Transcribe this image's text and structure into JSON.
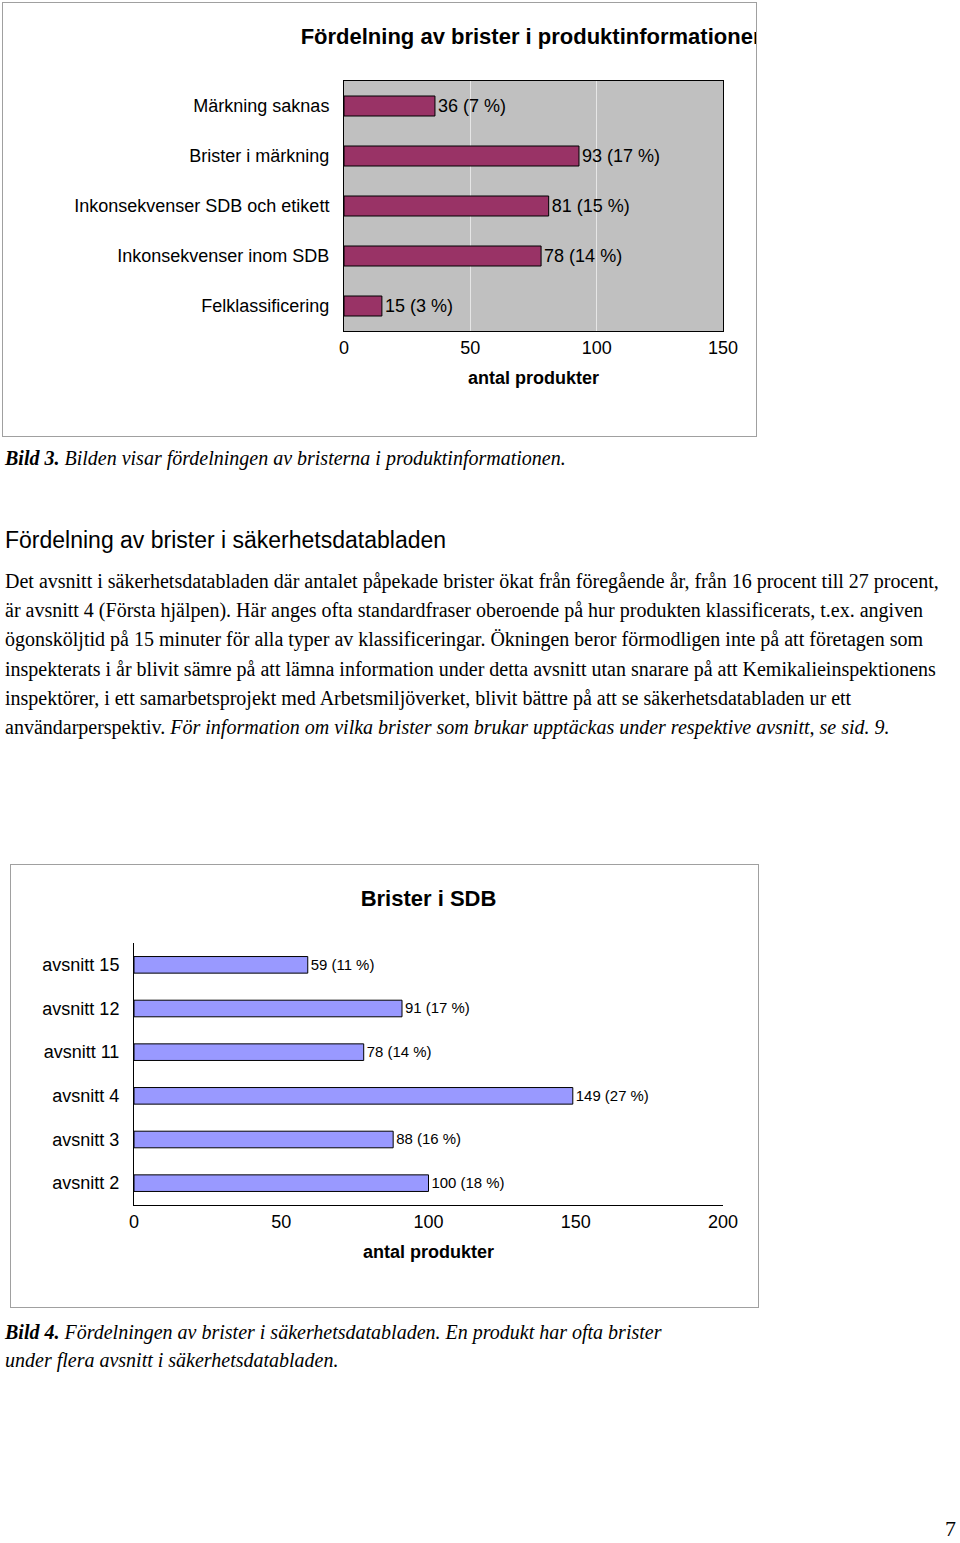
{
  "chart_data": [
    {
      "type": "bar",
      "orientation": "horizontal",
      "title": "Fördelning av brister i produktinformationen",
      "categories": [
        "Märkning saknas",
        "Brister i märkning",
        "Inkonsekvenser SDB och etikett",
        "Inkonsekvenser inom SDB",
        "Felklassificering"
      ],
      "values": [
        36,
        93,
        81,
        78,
        15
      ],
      "value_labels": [
        "36 (7 %)",
        "93 (17 %)",
        "81 (15 %)",
        "78 (14 %)",
        "15 (3 %)"
      ],
      "data_labels": true,
      "color": "#993366",
      "xlabel": "antal produkter",
      "xlim": [
        0,
        150
      ],
      "xticks": [
        0,
        50,
        100,
        150
      ],
      "grid": true
    },
    {
      "type": "bar",
      "orientation": "horizontal",
      "title": "Brister i SDB",
      "categories": [
        "avsnitt 15",
        "avsnitt 12",
        "avsnitt 11",
        "avsnitt 4",
        "avsnitt 3",
        "avsnitt 2"
      ],
      "values": [
        59,
        91,
        78,
        149,
        88,
        100
      ],
      "value_labels": [
        "59 (11 %)",
        "91 (17 %)",
        "78 (14 %)",
        "149 (27 %)",
        "88 (16 %)",
        "100 (18 %)"
      ],
      "data_labels": true,
      "color": "#9999ff",
      "xlabel": "antal produkter",
      "xlim": [
        0,
        200
      ],
      "xticks": [
        0,
        50,
        100,
        150,
        200
      ],
      "grid": false
    }
  ],
  "document": {
    "caption_1": {
      "label": "Bild 3.",
      "text": "Bilden visar fördelningen av bristerna i produktinformationen."
    },
    "heading": "Fördelning av brister i säkerhetsdatabladen",
    "paragraph": "Det avsnitt i säkerhetsdatabladen där antalet påpekade brister ökat från föregående år, från 16 procent till 27 procent, är avsnitt 4 (Första hjälpen). Här anges ofta standardfraser oberoende på hur produkten klassificerats, t.ex. angiven ögonsköljtid på 15 minuter för alla typer av klassificeringar. Ökningen beror förmodligen inte på att företagen som inspekterats i år blivit sämre på att lämna information under detta avsnitt utan snarare på att Kemikalieinspektionens inspektörer, i ett samarbetsprojekt med Arbetsmiljöverket, blivit bättre på att se säkerhetsdatabladen ur ett användarperspektiv.",
    "paragraph_italic": "För information om vilka brister som brukar upptäckas under respektive avsnitt, se sid. 9.",
    "caption_2": {
      "label": "Bild 4.",
      "text": "Fördelningen av brister i säkerhetsdatabladen. En produkt har ofta brister under flera avsnitt i säkerhetsdatabladen."
    },
    "page_number": 7
  }
}
